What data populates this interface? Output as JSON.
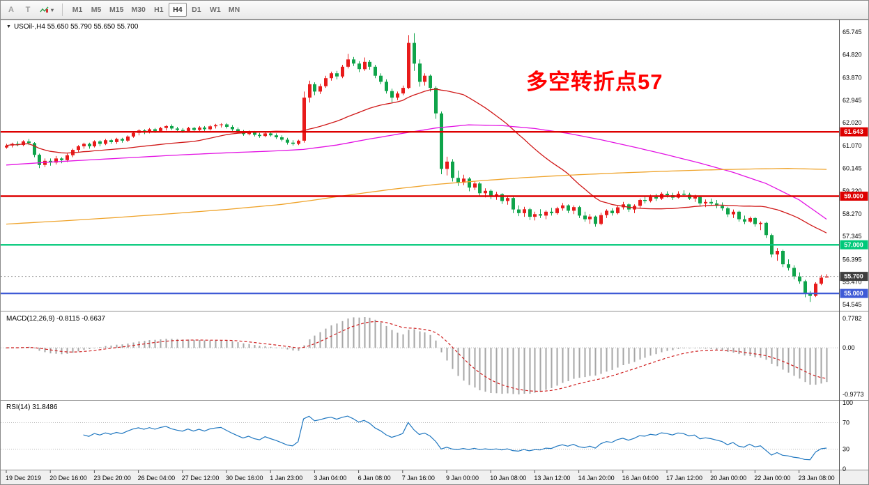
{
  "icons": {
    "chevron_down": "▾",
    "collapse_marker": "▼"
  },
  "toolbar": {
    "tool_buttons": [
      {
        "label": "A"
      },
      {
        "label": "T"
      }
    ],
    "timeframes": [
      "M1",
      "M5",
      "M15",
      "M30",
      "H1",
      "H4",
      "D1",
      "W1",
      "MN"
    ],
    "active_timeframe": "H4"
  },
  "chart_data": {
    "type": "candlestick",
    "symbol": "USOil-",
    "timeframe": "H4",
    "title": "USOil-,H4 55.650 55.790 55.650 55.700",
    "last_candle_display": {
      "open": "55.650",
      "high": "55.790",
      "low": "55.650",
      "close": "55.700"
    },
    "up_color": "#e81b1b",
    "down_color": "#0fa44a",
    "annotation": {
      "text": "多空转折点57",
      "color": "#ff0000"
    },
    "price_axis": {
      "visible_max": 66.09,
      "visible_min": 54.4,
      "labels": [
        65.745,
        64.82,
        63.87,
        62.945,
        62.02,
        61.07,
        60.145,
        59.22,
        58.27,
        57.345,
        56.395,
        55.47,
        54.545
      ]
    },
    "levels": [
      {
        "price": 61.643,
        "color": "#dd0000"
      },
      {
        "price": 59.0,
        "color": "#dd0000"
      },
      {
        "price": 57.0,
        "color": "#00c97a"
      },
      {
        "price": 55.0,
        "color": "#3f5bd6"
      }
    ],
    "current_price": 55.7,
    "current_price_badge_color": "#3f3f3f",
    "moving_averages": [
      {
        "name": "ma-fast",
        "color": "#d01818",
        "method": "sma_close",
        "period": 30
      },
      {
        "name": "ma-mid",
        "color": "#e312e3",
        "method": "points",
        "points": [
          [
            0,
            60.28
          ],
          [
            8,
            60.4
          ],
          [
            16,
            60.5
          ],
          [
            24,
            60.6
          ],
          [
            32,
            60.7
          ],
          [
            40,
            60.78
          ],
          [
            48,
            60.85
          ],
          [
            54,
            60.92
          ],
          [
            60,
            61.1
          ],
          [
            66,
            61.35
          ],
          [
            72,
            61.58
          ],
          [
            78,
            61.8
          ],
          [
            84,
            61.93
          ],
          [
            90,
            61.9
          ],
          [
            96,
            61.78
          ],
          [
            102,
            61.58
          ],
          [
            108,
            61.32
          ],
          [
            114,
            61.02
          ],
          [
            120,
            60.7
          ],
          [
            126,
            60.36
          ],
          [
            132,
            59.98
          ],
          [
            138,
            59.52
          ],
          [
            144,
            58.85
          ],
          [
            149,
            58.05
          ]
        ]
      },
      {
        "name": "ma-slow",
        "color": "#efa32a",
        "method": "points",
        "points": [
          [
            0,
            57.85
          ],
          [
            10,
            57.98
          ],
          [
            20,
            58.12
          ],
          [
            30,
            58.28
          ],
          [
            40,
            58.45
          ],
          [
            50,
            58.66
          ],
          [
            56,
            58.84
          ],
          [
            62,
            59.04
          ],
          [
            70,
            59.28
          ],
          [
            78,
            59.48
          ],
          [
            86,
            59.63
          ],
          [
            94,
            59.76
          ],
          [
            102,
            59.86
          ],
          [
            110,
            59.94
          ],
          [
            118,
            60.01
          ],
          [
            126,
            60.07
          ],
          [
            134,
            60.11
          ],
          [
            142,
            60.14
          ],
          [
            149,
            60.1
          ]
        ]
      }
    ],
    "time_axis": {
      "tick_interval_candles": 8,
      "labels": [
        "19 Dec 2019",
        "20 Dec 16:00",
        "23 Dec 20:00",
        "26 Dec 04:00",
        "27 Dec 12:00",
        "30 Dec 16:00",
        "1 Jan 23:00",
        "3 Jan 04:00",
        "6 Jan 08:00",
        "7 Jan 16:00",
        "9 Jan 00:00",
        "10 Jan 08:00",
        "13 Jan 12:00",
        "14 Jan 20:00",
        "16 Jan 04:00",
        "17 Jan 12:00",
        "20 Jan 00:00",
        "22 Jan 00:00",
        "23 Jan 08:00"
      ]
    },
    "indicators": {
      "macd": {
        "title": "MACD(12,26,9) -0.8115 -0.6637",
        "fast": 12,
        "slow": 26,
        "signal": 9,
        "axis_labels": [
          "0.7782",
          "0.00",
          "-0.9773"
        ],
        "histogram_color": "#a6a6a6",
        "signal_color": "#cf1f1f"
      },
      "rsi": {
        "title": "RSI(14) 31.8486",
        "period": 14,
        "axis_labels": [
          100,
          70,
          30,
          0
        ],
        "levels": [
          70,
          30
        ],
        "color": "#1f77c0"
      }
    },
    "candles": [
      [
        61.0,
        61.15,
        60.95,
        61.08
      ],
      [
        61.08,
        61.2,
        61.0,
        61.15
      ],
      [
        61.15,
        61.25,
        61.05,
        61.1
      ],
      [
        61.1,
        61.3,
        61.05,
        61.25
      ],
      [
        61.25,
        61.35,
        61.1,
        61.18
      ],
      [
        61.18,
        61.22,
        60.6,
        60.7
      ],
      [
        60.7,
        60.75,
        60.15,
        60.28
      ],
      [
        60.28,
        60.55,
        60.2,
        60.45
      ],
      [
        60.45,
        60.55,
        60.25,
        60.38
      ],
      [
        60.38,
        60.65,
        60.3,
        60.55
      ],
      [
        60.55,
        60.6,
        60.35,
        60.48
      ],
      [
        60.48,
        60.75,
        60.4,
        60.68
      ],
      [
        60.68,
        60.95,
        60.6,
        60.9
      ],
      [
        60.9,
        61.1,
        60.8,
        61.05
      ],
      [
        61.05,
        61.2,
        60.95,
        61.15
      ],
      [
        61.15,
        61.2,
        60.95,
        61.05
      ],
      [
        61.05,
        61.3,
        61.0,
        61.25
      ],
      [
        61.25,
        61.3,
        61.05,
        61.15
      ],
      [
        61.15,
        61.35,
        61.1,
        61.3
      ],
      [
        61.3,
        61.35,
        61.15,
        61.22
      ],
      [
        61.22,
        61.4,
        61.15,
        61.35
      ],
      [
        61.35,
        61.4,
        61.2,
        61.28
      ],
      [
        61.28,
        61.5,
        61.22,
        61.45
      ],
      [
        61.45,
        61.65,
        61.4,
        61.6
      ],
      [
        61.6,
        61.75,
        61.5,
        61.7
      ],
      [
        61.7,
        61.75,
        61.55,
        61.63
      ],
      [
        61.63,
        61.8,
        61.58,
        61.75
      ],
      [
        61.75,
        61.8,
        61.6,
        61.68
      ],
      [
        61.68,
        61.85,
        61.62,
        61.8
      ],
      [
        61.8,
        61.92,
        61.7,
        61.88
      ],
      [
        61.88,
        61.95,
        61.72,
        61.78
      ],
      [
        61.78,
        61.85,
        61.65,
        61.72
      ],
      [
        61.72,
        61.8,
        61.6,
        61.68
      ],
      [
        61.68,
        61.85,
        61.62,
        61.8
      ],
      [
        61.8,
        61.85,
        61.65,
        61.72
      ],
      [
        61.72,
        61.88,
        61.68,
        61.82
      ],
      [
        61.82,
        61.88,
        61.68,
        61.75
      ],
      [
        61.75,
        61.92,
        61.7,
        61.87
      ],
      [
        61.87,
        61.97,
        61.78,
        61.92
      ],
      [
        61.92,
        62.0,
        61.82,
        61.95
      ],
      [
        61.95,
        62.0,
        61.78,
        61.85
      ],
      [
        61.85,
        61.92,
        61.68,
        61.75
      ],
      [
        61.75,
        61.82,
        61.58,
        61.65
      ],
      [
        61.65,
        61.72,
        61.48,
        61.55
      ],
      [
        61.55,
        61.7,
        61.5,
        61.62
      ],
      [
        61.62,
        61.68,
        61.45,
        61.52
      ],
      [
        61.52,
        61.6,
        61.4,
        61.47
      ],
      [
        61.47,
        61.65,
        61.42,
        61.58
      ],
      [
        61.58,
        61.65,
        61.45,
        61.5
      ],
      [
        61.5,
        61.58,
        61.35,
        61.42
      ],
      [
        61.42,
        61.5,
        61.25,
        61.32
      ],
      [
        61.32,
        61.4,
        61.12,
        61.2
      ],
      [
        61.2,
        61.3,
        61.08,
        61.15
      ],
      [
        61.15,
        61.32,
        61.1,
        61.28
      ],
      [
        61.28,
        63.3,
        61.2,
        63.05
      ],
      [
        63.05,
        63.75,
        62.85,
        63.6
      ],
      [
        63.6,
        63.68,
        63.15,
        63.3
      ],
      [
        63.3,
        63.62,
        63.2,
        63.52
      ],
      [
        63.52,
        63.95,
        63.45,
        63.85
      ],
      [
        63.85,
        64.12,
        63.75,
        64.05
      ],
      [
        64.05,
        64.15,
        63.8,
        63.92
      ],
      [
        63.92,
        64.4,
        63.85,
        64.32
      ],
      [
        64.32,
        64.85,
        64.25,
        64.62
      ],
      [
        64.62,
        64.72,
        64.35,
        64.45
      ],
      [
        64.45,
        64.55,
        64.1,
        64.22
      ],
      [
        64.22,
        64.7,
        64.15,
        64.52
      ],
      [
        64.52,
        64.6,
        64.2,
        64.32
      ],
      [
        64.32,
        64.4,
        63.85,
        63.95
      ],
      [
        63.95,
        64.05,
        63.6,
        63.7
      ],
      [
        63.7,
        63.8,
        63.22,
        63.32
      ],
      [
        63.32,
        63.42,
        62.85,
        63.05
      ],
      [
        63.05,
        63.3,
        62.95,
        63.22
      ],
      [
        63.22,
        63.55,
        63.15,
        63.45
      ],
      [
        63.45,
        65.62,
        63.4,
        65.3
      ],
      [
        65.3,
        65.7,
        64.15,
        64.45
      ],
      [
        64.45,
        64.62,
        63.5,
        63.7
      ],
      [
        63.7,
        64.05,
        63.55,
        63.95
      ],
      [
        63.95,
        64.0,
        63.3,
        63.45
      ],
      [
        63.45,
        63.52,
        62.18,
        62.4
      ],
      [
        62.4,
        62.48,
        59.9,
        60.12
      ],
      [
        60.12,
        60.62,
        59.85,
        60.42
      ],
      [
        60.42,
        60.52,
        59.6,
        59.75
      ],
      [
        59.75,
        60.05,
        59.42,
        59.55
      ],
      [
        59.55,
        59.88,
        59.45,
        59.72
      ],
      [
        59.72,
        59.78,
        59.2,
        59.35
      ],
      [
        59.35,
        59.62,
        59.25,
        59.52
      ],
      [
        59.52,
        59.58,
        59.0,
        59.12
      ],
      [
        59.12,
        59.32,
        58.95,
        59.22
      ],
      [
        59.22,
        59.28,
        58.88,
        59.0
      ],
      [
        59.0,
        59.18,
        58.85,
        59.08
      ],
      [
        59.08,
        59.12,
        58.68,
        58.8
      ],
      [
        58.8,
        59.02,
        58.65,
        58.92
      ],
      [
        58.92,
        58.98,
        58.3,
        58.45
      ],
      [
        58.45,
        58.62,
        58.18,
        58.3
      ],
      [
        58.3,
        58.56,
        58.15,
        58.46
      ],
      [
        58.46,
        58.52,
        58.02,
        58.15
      ],
      [
        58.15,
        58.36,
        58.0,
        58.26
      ],
      [
        58.26,
        58.46,
        58.1,
        58.2
      ],
      [
        58.2,
        58.42,
        58.05,
        58.36
      ],
      [
        58.36,
        58.52,
        58.2,
        58.3
      ],
      [
        58.3,
        58.56,
        58.24,
        58.5
      ],
      [
        58.5,
        58.72,
        58.4,
        58.62
      ],
      [
        58.62,
        58.66,
        58.3,
        58.4
      ],
      [
        58.4,
        58.62,
        58.26,
        58.55
      ],
      [
        58.55,
        58.6,
        58.1,
        58.2
      ],
      [
        58.2,
        58.36,
        57.95,
        58.05
      ],
      [
        58.05,
        58.26,
        57.86,
        58.16
      ],
      [
        58.16,
        58.2,
        57.74,
        57.86
      ],
      [
        57.86,
        58.32,
        57.8,
        58.22
      ],
      [
        58.22,
        58.46,
        58.1,
        58.4
      ],
      [
        58.4,
        58.5,
        58.2,
        58.3
      ],
      [
        58.3,
        58.6,
        58.25,
        58.54
      ],
      [
        58.54,
        58.76,
        58.45,
        58.66
      ],
      [
        58.66,
        58.7,
        58.35,
        58.45
      ],
      [
        58.45,
        58.66,
        58.3,
        58.6
      ],
      [
        58.6,
        58.9,
        58.5,
        58.84
      ],
      [
        58.84,
        59.0,
        58.7,
        58.8
      ],
      [
        58.8,
        59.06,
        58.74,
        58.96
      ],
      [
        58.96,
        59.1,
        58.8,
        58.9
      ],
      [
        58.9,
        59.16,
        58.84,
        59.1
      ],
      [
        59.1,
        59.2,
        58.94,
        59.04
      ],
      [
        59.04,
        59.14,
        58.84,
        58.94
      ],
      [
        58.94,
        59.2,
        58.9,
        59.1
      ],
      [
        59.1,
        59.24,
        59.0,
        59.06
      ],
      [
        59.06,
        59.14,
        58.84,
        58.9
      ],
      [
        58.9,
        59.06,
        58.76,
        58.96
      ],
      [
        58.96,
        59.0,
        58.6,
        58.7
      ],
      [
        58.7,
        58.86,
        58.55,
        58.76
      ],
      [
        58.76,
        58.9,
        58.6,
        58.7
      ],
      [
        58.7,
        58.84,
        58.5,
        58.6
      ],
      [
        58.6,
        58.74,
        58.4,
        58.5
      ],
      [
        58.5,
        58.56,
        58.14,
        58.25
      ],
      [
        58.25,
        58.45,
        58.1,
        58.36
      ],
      [
        58.36,
        58.4,
        57.95,
        58.05
      ],
      [
        58.05,
        58.2,
        57.85,
        57.95
      ],
      [
        57.95,
        58.16,
        57.9,
        58.1
      ],
      [
        58.1,
        58.14,
        57.74,
        57.85
      ],
      [
        57.85,
        57.96,
        57.6,
        57.9
      ],
      [
        57.9,
        57.94,
        57.28,
        57.4
      ],
      [
        57.4,
        57.46,
        56.48,
        56.6
      ],
      [
        56.6,
        56.86,
        56.34,
        56.75
      ],
      [
        56.75,
        56.8,
        56.08,
        56.2
      ],
      [
        56.2,
        56.4,
        55.94,
        56.05
      ],
      [
        56.05,
        56.16,
        55.58,
        55.7
      ],
      [
        55.7,
        55.86,
        55.4,
        55.5
      ],
      [
        55.5,
        55.56,
        54.84,
        55.0
      ],
      [
        55.0,
        55.1,
        54.65,
        54.9
      ],
      [
        54.9,
        55.46,
        54.85,
        55.4
      ],
      [
        55.4,
        55.76,
        55.34,
        55.65
      ],
      [
        55.65,
        55.79,
        55.65,
        55.7
      ]
    ]
  }
}
